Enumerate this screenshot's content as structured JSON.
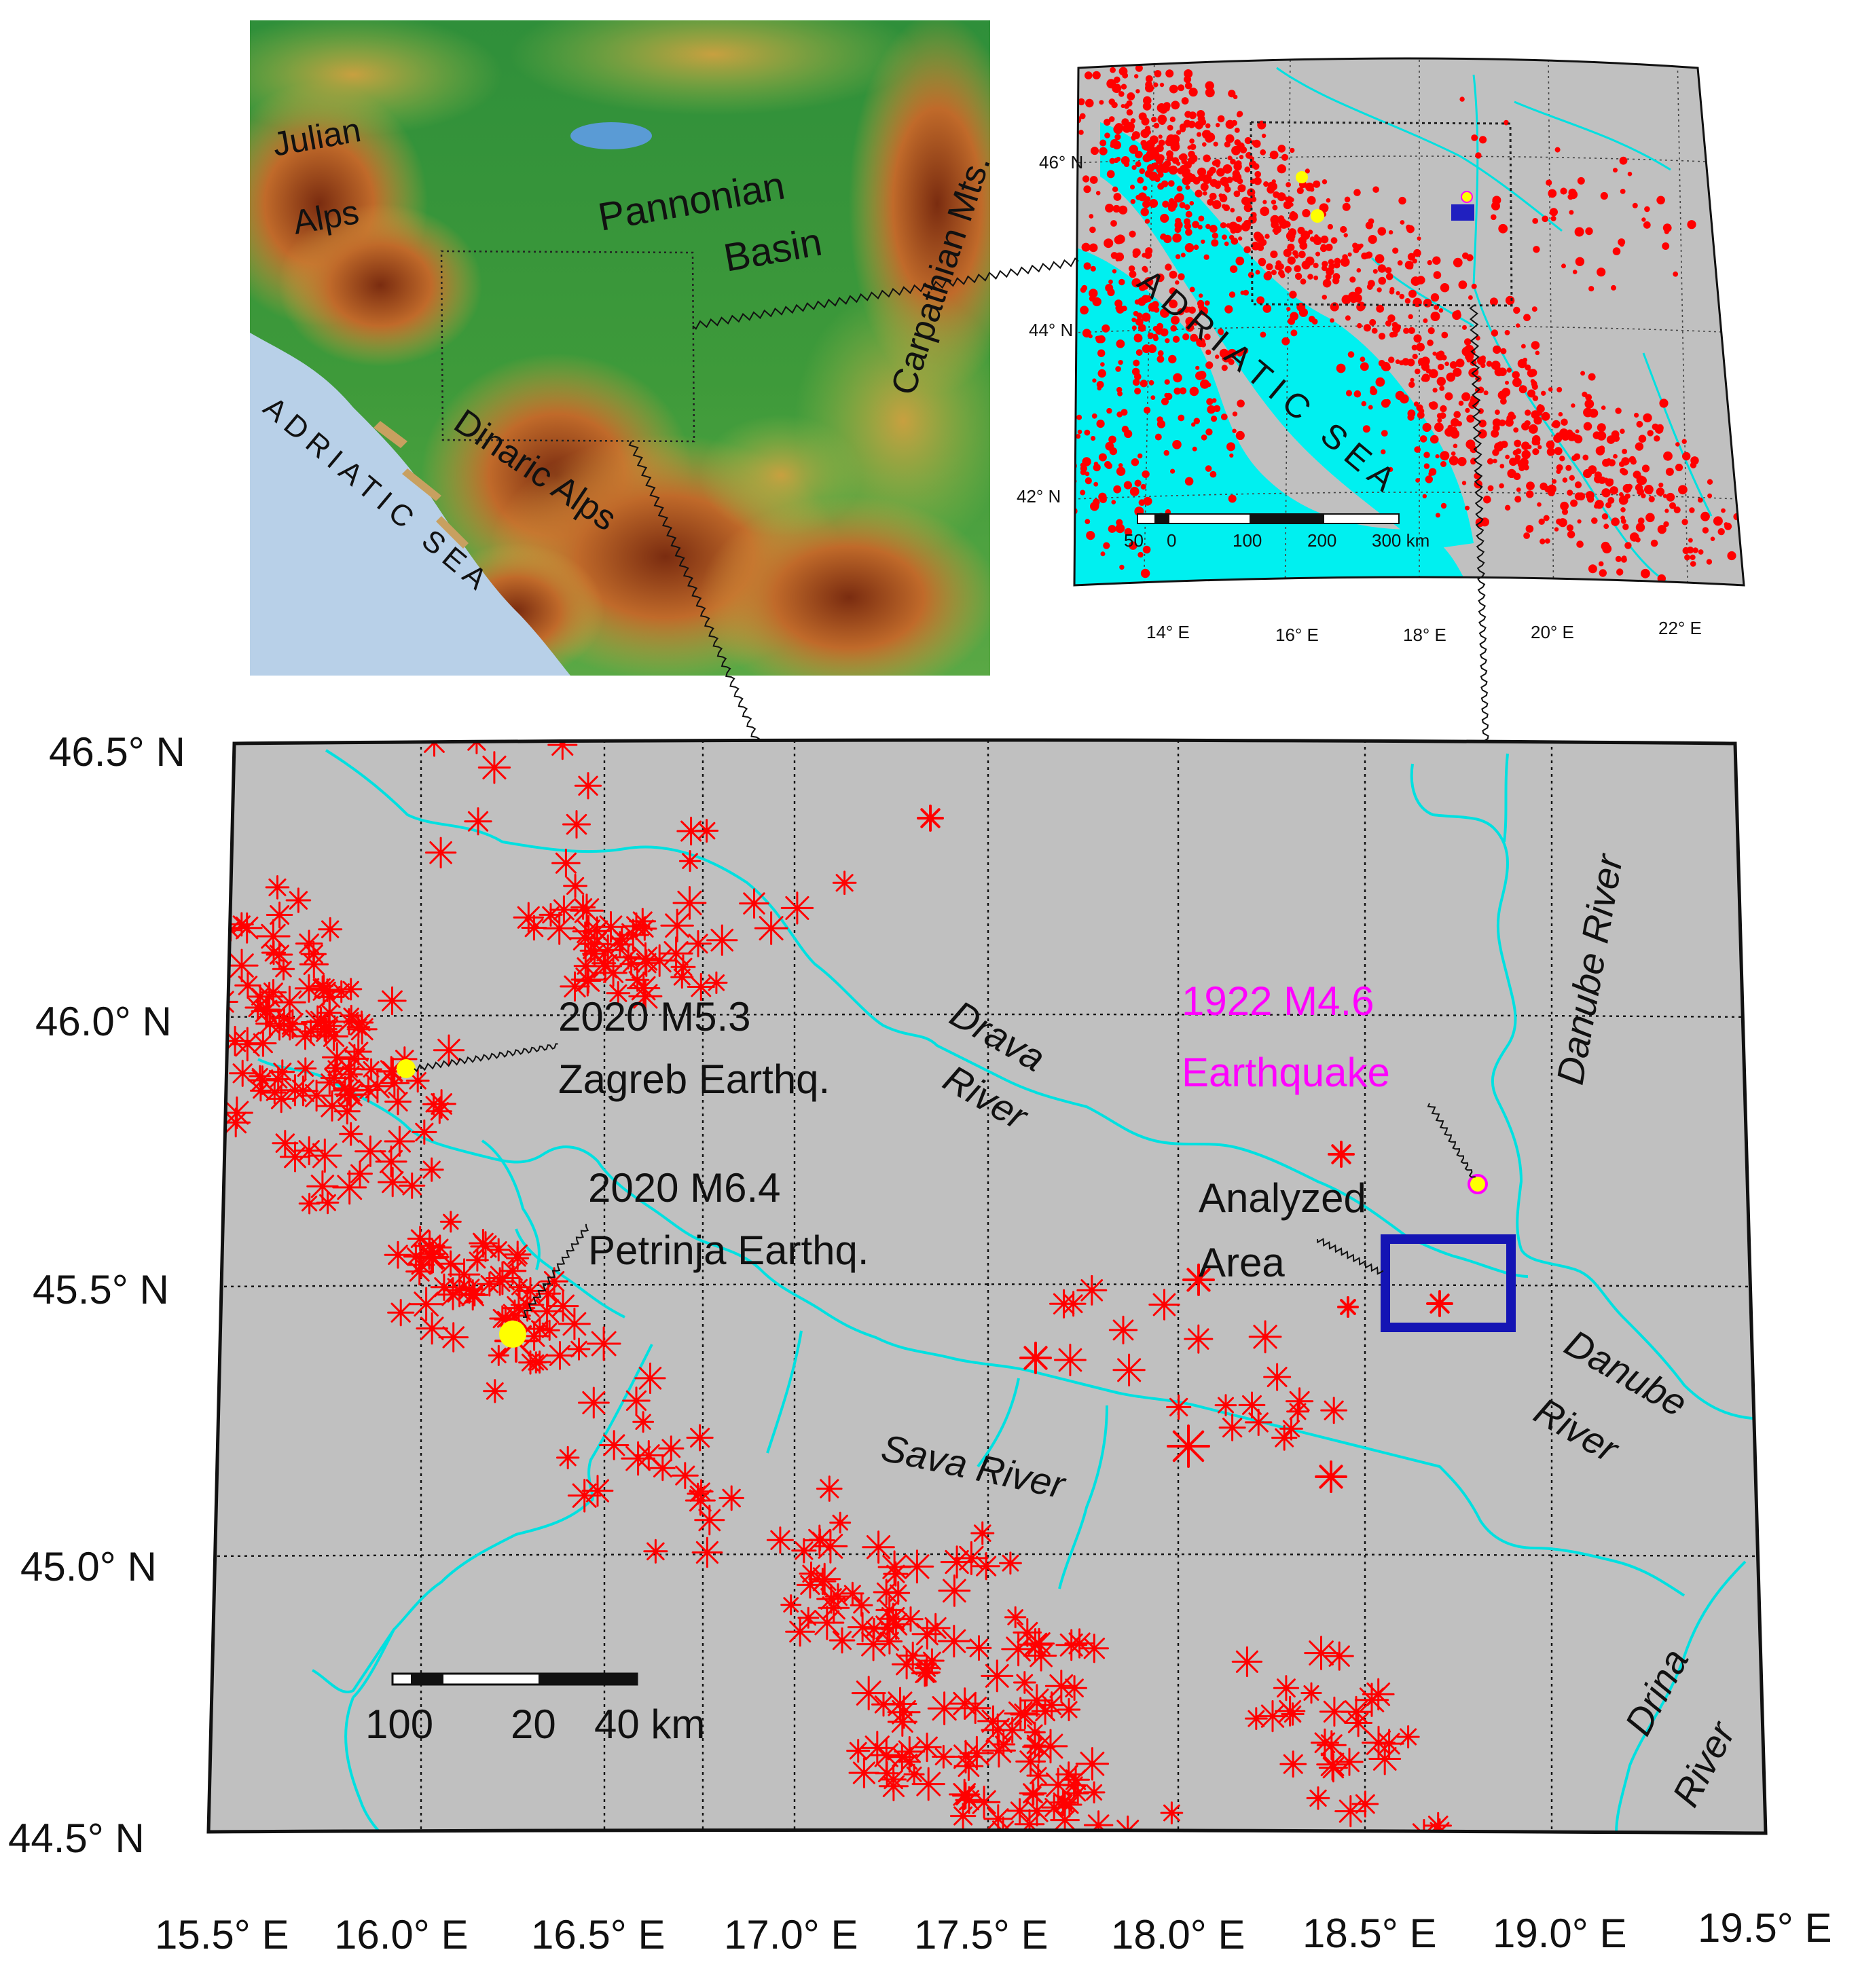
{
  "topo": {
    "labels": {
      "julian": [
        "Julian",
        "Alps"
      ],
      "pannonian": [
        "Pannonian",
        "Basin"
      ],
      "carpathian": "Carpathian Mts.",
      "dinaric": "Dinaric Alps",
      "adriatic": "ADRIATIC SEA"
    }
  },
  "overview": {
    "lat_labels": [
      "46° N",
      "44° N",
      "42° N"
    ],
    "lon_labels": [
      "14° E",
      "16° E",
      "18° E",
      "20° E",
      "22° E"
    ],
    "sea_label": "ADRIATIC SEA",
    "scale_labels": [
      "50",
      "0",
      "100",
      "200",
      "300 km"
    ],
    "colors": {
      "land": "#c0c0c0",
      "sea": "#00f0f0",
      "events": "#ff0000",
      "box": "#2020c0"
    }
  },
  "main": {
    "lat_labels": [
      "46.5° N",
      "46.0° N",
      "45.5° N",
      "45.0° N",
      "44.5° N"
    ],
    "lon_labels": [
      "15.5° E",
      "16.0° E",
      "16.5° E",
      "17.0° E",
      "17.5° E",
      "18.0° E",
      "18.5° E",
      "19.0° E",
      "19.5° E"
    ],
    "annotations": {
      "zagreb": [
        "2020 M5.3",
        "Zagreb Earthq."
      ],
      "petrinja": [
        "2020 M6.4",
        "Petrinja Earthq."
      ],
      "eq1922": [
        "1922 M4.6",
        "Earthquake"
      ],
      "analyzed": [
        "Analyzed",
        "Area"
      ]
    },
    "rivers": {
      "drava": [
        "Drava",
        "River"
      ],
      "danube_n": "Danube River",
      "danube_s": [
        "Danube",
        "River"
      ],
      "sava": "Sava River",
      "drina": [
        "Drina",
        "River"
      ]
    },
    "scale_labels": [
      "100",
      "20",
      "40 km"
    ],
    "colors": {
      "land": "#c0c0c0",
      "rivers": "#00e0e0",
      "events": "#ff0000",
      "analyzed_box": "#1414b4",
      "eq1922_text": "#ff00ff",
      "epicenter": "#ffff00"
    }
  }
}
